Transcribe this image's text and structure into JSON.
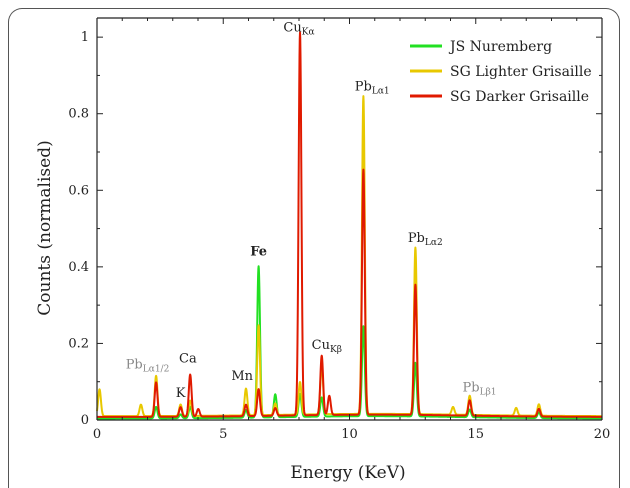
{
  "chart_data": {
    "type": "line",
    "xlabel": "Energy (KeV)",
    "ylabel": "Counts (normalised)",
    "xlim": [
      0,
      20
    ],
    "ylim": [
      0,
      1.05
    ],
    "xticks": [
      0,
      5,
      10,
      15,
      20
    ],
    "yticks": [
      0,
      0.2,
      0.4,
      0.6,
      0.8,
      1
    ],
    "ytick_labels": [
      "0",
      "0.2",
      "0.4",
      "0.6",
      "0.8",
      "1"
    ],
    "grid": false,
    "legend": "top-right",
    "series": [
      {
        "name": "JS Nuremberg",
        "color": "#22e022",
        "baseline": 0.004,
        "peaks": [
          [
            2.34,
            0.03
          ],
          [
            3.31,
            0.01
          ],
          [
            3.69,
            0.03
          ],
          [
            5.9,
            0.02
          ],
          [
            6.4,
            0.395
          ],
          [
            7.06,
            0.06
          ],
          [
            8.04,
            0.06
          ],
          [
            8.9,
            0.05
          ],
          [
            10.55,
            0.235
          ],
          [
            12.61,
            0.14
          ],
          [
            14.76,
            0.02
          ],
          [
            17.5,
            0.015
          ]
        ]
      },
      {
        "name": "SG Lighter Grisaille",
        "color": "#e8c800",
        "baseline": 0.01,
        "peaks": [
          [
            0.1,
            0.07
          ],
          [
            1.74,
            0.03
          ],
          [
            2.34,
            0.105
          ],
          [
            3.31,
            0.03
          ],
          [
            3.69,
            0.04
          ],
          [
            5.9,
            0.07
          ],
          [
            6.4,
            0.235
          ],
          [
            7.06,
            0.03
          ],
          [
            8.04,
            0.085
          ],
          [
            8.9,
            0.13
          ],
          [
            10.55,
            0.83
          ],
          [
            12.61,
            0.435
          ],
          [
            14.1,
            0.02
          ],
          [
            14.76,
            0.05
          ],
          [
            16.6,
            0.02
          ],
          [
            17.5,
            0.03
          ]
        ]
      },
      {
        "name": "SG Darker Grisaille",
        "color": "#e01a00",
        "baseline": 0.008,
        "peaks": [
          [
            2.34,
            0.09
          ],
          [
            3.31,
            0.025
          ],
          [
            3.69,
            0.11
          ],
          [
            4.01,
            0.02
          ],
          [
            5.9,
            0.03
          ],
          [
            6.4,
            0.07
          ],
          [
            7.06,
            0.02
          ],
          [
            8.04,
            1.0
          ],
          [
            8.9,
            0.155
          ],
          [
            9.2,
            0.05
          ],
          [
            10.55,
            0.64
          ],
          [
            12.61,
            0.34
          ],
          [
            14.76,
            0.04
          ],
          [
            17.5,
            0.02
          ]
        ]
      }
    ],
    "annotations": [
      {
        "text": "Pb",
        "sub": "Lα1/2",
        "x": 2.0,
        "y": 0.135,
        "color": "#888888",
        "bold": false
      },
      {
        "text": "K",
        "sub": "",
        "x": 3.31,
        "y": 0.06,
        "color": "#222222",
        "bold": false
      },
      {
        "text": "Ca",
        "sub": "",
        "x": 3.6,
        "y": 0.15,
        "color": "#222222",
        "bold": false
      },
      {
        "text": "Mn",
        "sub": "",
        "x": 5.75,
        "y": 0.105,
        "color": "#222222",
        "bold": false
      },
      {
        "text": "Fe",
        "sub": "",
        "x": 6.4,
        "y": 0.43,
        "color": "#222222",
        "bold": true
      },
      {
        "text": "Cu",
        "sub": "Kα",
        "x": 8.0,
        "y": 1.015,
        "color": "#222222",
        "bold": false
      },
      {
        "text": "Cu",
        "sub": "Kβ",
        "x": 9.1,
        "y": 0.185,
        "color": "#222222",
        "bold": false
      },
      {
        "text": "Pb",
        "sub": "Lα1",
        "x": 10.9,
        "y": 0.86,
        "color": "#222222",
        "bold": false
      },
      {
        "text": "Pb",
        "sub": "Lα2",
        "x": 13.0,
        "y": 0.465,
        "color": "#222222",
        "bold": false
      },
      {
        "text": "Pb",
        "sub": "Lβ1",
        "x": 15.15,
        "y": 0.075,
        "color": "#888888",
        "bold": false
      }
    ]
  }
}
